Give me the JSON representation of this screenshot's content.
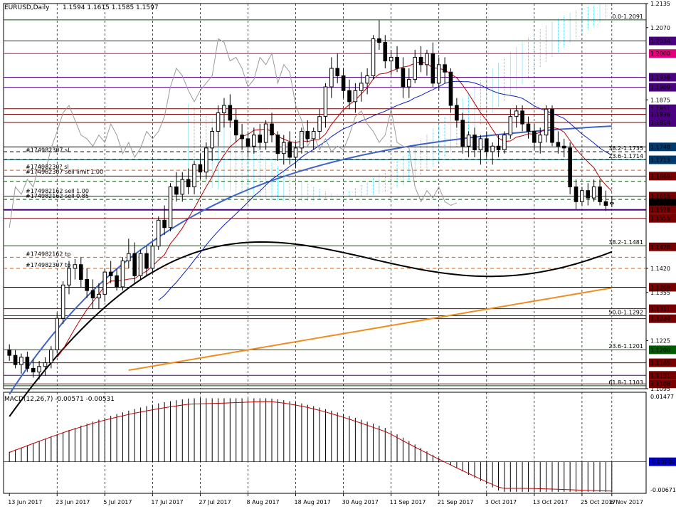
{
  "header": {
    "symbol": "EURUSD,Daily",
    "ohlc": "1.1594 1.1615 1.1585 1.1597"
  },
  "macd_header": {
    "label": "MACD(12,26,7) -0.00571 -0.00531"
  },
  "colors": {
    "background": "#ffffff",
    "candle": "#000000",
    "ma_fast": "#3f64c8",
    "ma_slow": "#000000",
    "ma_200": "#f08c1e",
    "kijun": "#0a1fbf",
    "tenkan": "#c00000",
    "kumo": "#25c8e6",
    "macd_signal": "#c00000",
    "level_purple": "#4b0082",
    "level_maroon": "#7a0000",
    "level_green": "#005c00",
    "level_orange": "#e05a00",
    "current_price": "#000000",
    "label_magenta": "#e0007a"
  },
  "chart_data": {
    "type": "candlestick",
    "title": "EURUSD,Daily",
    "ylim": [
      1.1095,
      1.2135
    ],
    "y_ticks": [
      "1.2135",
      "1.2070",
      "1.2005",
      "1.1940",
      "1.1875",
      "1.1810",
      "1.1745",
      "1.1680",
      "1.1615",
      "1.1550",
      "1.1485",
      "1.1420",
      "1.1355",
      "1.1290",
      "1.1225",
      "1.1160",
      "1.1095"
    ],
    "x_ticks": [
      "13 Jun 2017",
      "23 Jun 2017",
      "5 Jul 2017",
      "17 Jul 2017",
      "27 Jul 2017",
      "8 Aug 2017",
      "18 Aug 2017",
      "30 Aug 2017",
      "11 Sep 2017",
      "21 Sep 2017",
      "3 Oct 2017",
      "13 Oct 2017",
      "25 Oct 2017",
      "6 Nov 2017"
    ],
    "candles": [
      [
        1.12,
        1.1215,
        1.117,
        1.1185
      ],
      [
        1.1185,
        1.12,
        1.115,
        1.116
      ],
      [
        1.116,
        1.119,
        1.1135,
        1.118
      ],
      [
        1.118,
        1.1195,
        1.114,
        1.115
      ],
      [
        1.115,
        1.1175,
        1.1125,
        1.114
      ],
      [
        1.114,
        1.117,
        1.112,
        1.1155
      ],
      [
        1.1155,
        1.118,
        1.113,
        1.1165
      ],
      [
        1.1165,
        1.121,
        1.115,
        1.12
      ],
      [
        1.12,
        1.13,
        1.119,
        1.1285
      ],
      [
        1.1285,
        1.1385,
        1.127,
        1.1375
      ],
      [
        1.1375,
        1.144,
        1.135,
        1.142
      ],
      [
        1.142,
        1.1445,
        1.139,
        1.143
      ],
      [
        1.143,
        1.145,
        1.137,
        1.139
      ],
      [
        1.139,
        1.142,
        1.134,
        1.136
      ],
      [
        1.136,
        1.139,
        1.131,
        1.134
      ],
      [
        1.134,
        1.138,
        1.131,
        1.135
      ],
      [
        1.135,
        1.142,
        1.133,
        1.141
      ],
      [
        1.141,
        1.144,
        1.138,
        1.14
      ],
      [
        1.14,
        1.142,
        1.136,
        1.137
      ],
      [
        1.137,
        1.145,
        1.136,
        1.144
      ],
      [
        1.144,
        1.15,
        1.142,
        1.146
      ],
      [
        1.146,
        1.149,
        1.138,
        1.14
      ],
      [
        1.14,
        1.147,
        1.139,
        1.146
      ],
      [
        1.146,
        1.148,
        1.14,
        1.142
      ],
      [
        1.142,
        1.149,
        1.141,
        1.148
      ],
      [
        1.148,
        1.156,
        1.147,
        1.155
      ],
      [
        1.155,
        1.159,
        1.151,
        1.153
      ],
      [
        1.153,
        1.165,
        1.152,
        1.164
      ],
      [
        1.164,
        1.168,
        1.16,
        1.162
      ],
      [
        1.162,
        1.168,
        1.16,
        1.166
      ],
      [
        1.166,
        1.169,
        1.162,
        1.164
      ],
      [
        1.164,
        1.171,
        1.162,
        1.17
      ],
      [
        1.17,
        1.173,
        1.166,
        1.168
      ],
      [
        1.168,
        1.176,
        1.166,
        1.1745
      ],
      [
        1.1745,
        1.18,
        1.171,
        1.179
      ],
      [
        1.179,
        1.186,
        1.175,
        1.184
      ],
      [
        1.184,
        1.188,
        1.18,
        1.186
      ],
      [
        1.186,
        1.189,
        1.18,
        1.182
      ],
      [
        1.182,
        1.185,
        1.176,
        1.178
      ],
      [
        1.178,
        1.181,
        1.174,
        1.177
      ],
      [
        1.177,
        1.179,
        1.172,
        1.175
      ],
      [
        1.175,
        1.18,
        1.173,
        1.178
      ],
      [
        1.178,
        1.181,
        1.174,
        1.176
      ],
      [
        1.176,
        1.182,
        1.174,
        1.181
      ],
      [
        1.181,
        1.184,
        1.176,
        1.178
      ],
      [
        1.178,
        1.179,
        1.171,
        1.173
      ],
      [
        1.173,
        1.178,
        1.17,
        1.176
      ],
      [
        1.176,
        1.179,
        1.17,
        1.172
      ],
      [
        1.172,
        1.176,
        1.169,
        1.1745
      ],
      [
        1.1745,
        1.18,
        1.173,
        1.179
      ],
      [
        1.179,
        1.182,
        1.176,
        1.177
      ],
      [
        1.177,
        1.18,
        1.174,
        1.179
      ],
      [
        1.179,
        1.185,
        1.177,
        1.183
      ],
      [
        1.183,
        1.192,
        1.18,
        1.191
      ],
      [
        1.191,
        1.199,
        1.188,
        1.196
      ],
      [
        1.196,
        1.2,
        1.192,
        1.194
      ],
      [
        1.194,
        1.196,
        1.188,
        1.19
      ],
      [
        1.19,
        1.193,
        1.185,
        1.187
      ],
      [
        1.187,
        1.192,
        1.184,
        1.19
      ],
      [
        1.19,
        1.195,
        1.187,
        1.192
      ],
      [
        1.192,
        1.196,
        1.189,
        1.194
      ],
      [
        1.194,
        1.205,
        1.193,
        1.204
      ],
      [
        1.204,
        1.209,
        1.201,
        1.203
      ],
      [
        1.203,
        1.205,
        1.196,
        1.198
      ],
      [
        1.198,
        1.201,
        1.194,
        1.199
      ],
      [
        1.199,
        1.202,
        1.195,
        1.196
      ],
      [
        1.196,
        1.199,
        1.188,
        1.191
      ],
      [
        1.191,
        1.196,
        1.188,
        1.193
      ],
      [
        1.193,
        1.201,
        1.192,
        1.199
      ],
      [
        1.199,
        1.202,
        1.195,
        1.197
      ],
      [
        1.197,
        1.201,
        1.194,
        1.2
      ],
      [
        1.2,
        1.203,
        1.191,
        1.192
      ],
      [
        1.192,
        1.199,
        1.19,
        1.197
      ],
      [
        1.197,
        1.199,
        1.192,
        1.195
      ],
      [
        1.195,
        1.196,
        1.184,
        1.186
      ],
      [
        1.186,
        1.188,
        1.18,
        1.182
      ],
      [
        1.182,
        1.184,
        1.173,
        1.175
      ],
      [
        1.175,
        1.179,
        1.172,
        1.178
      ],
      [
        1.178,
        1.18,
        1.172,
        1.174
      ],
      [
        1.174,
        1.178,
        1.17,
        1.177
      ],
      [
        1.177,
        1.179,
        1.172,
        1.1735
      ],
      [
        1.1735,
        1.176,
        1.17,
        1.175
      ],
      [
        1.175,
        1.178,
        1.172,
        1.174
      ],
      [
        1.174,
        1.179,
        1.173,
        1.178
      ],
      [
        1.178,
        1.185,
        1.177,
        1.183
      ],
      [
        1.183,
        1.186,
        1.18,
        1.1845
      ],
      [
        1.1845,
        1.186,
        1.179,
        1.181
      ],
      [
        1.181,
        1.183,
        1.177,
        1.179
      ],
      [
        1.179,
        1.181,
        1.174,
        1.176
      ],
      [
        1.176,
        1.18,
        1.173,
        1.178
      ],
      [
        1.178,
        1.186,
        1.176,
        1.185
      ],
      [
        1.185,
        1.186,
        1.175,
        1.176
      ],
      [
        1.176,
        1.179,
        1.173,
        1.175
      ],
      [
        1.175,
        1.177,
        1.172,
        1.1745
      ],
      [
        1.1745,
        1.176,
        1.162,
        1.164
      ],
      [
        1.164,
        1.166,
        1.158,
        1.16
      ],
      [
        1.16,
        1.164,
        1.159,
        1.163
      ],
      [
        1.163,
        1.165,
        1.159,
        1.161
      ],
      [
        1.161,
        1.166,
        1.16,
        1.164
      ],
      [
        1.164,
        1.166,
        1.159,
        1.16
      ],
      [
        1.16,
        1.163,
        1.1575,
        1.159
      ],
      [
        1.1594,
        1.1615,
        1.1585,
        1.1597
      ]
    ],
    "macd": {
      "label": "MACD(12,26,7) -0.00571 -0.00531",
      "ylim": [
        -0.00671,
        0.01477
      ],
      "y_ticks": [
        "0.01477",
        "-0.00000",
        "-0.00671"
      ]
    },
    "price_labels": [
      {
        "value": 1.2135,
        "text": "1.2135"
      },
      {
        "value": 1.207,
        "text": "1.2070"
      },
      {
        "value": 1.2034,
        "text": "1.2034"
      },
      {
        "value": 1.2,
        "text": "1.2000"
      },
      {
        "value": 1.1936,
        "text": "1.1936"
      },
      {
        "value": 1.1909,
        "text": "1.1909"
      },
      {
        "value": 1.1875,
        "text": "1.1875"
      },
      {
        "value": 1.1851,
        "text": "1.1851"
      },
      {
        "value": 1.1836,
        "text": "1.1836"
      },
      {
        "value": 1.1814,
        "text": "1.1814"
      },
      {
        "value": 1.1748,
        "text": "1.1748"
      },
      {
        "value": 1.1713,
        "text": "1.1713"
      },
      {
        "value": 1.1669,
        "text": "1.1669"
      },
      {
        "value": 1.1615,
        "text": "1.1615"
      },
      {
        "value": 1.1597,
        "text": "1.1597"
      },
      {
        "value": 1.1578,
        "text": "1.1578"
      },
      {
        "value": 1.1555,
        "text": "1.1555"
      },
      {
        "value": 1.1478,
        "text": "1.1478"
      },
      {
        "value": 1.142,
        "text": "1.1420"
      },
      {
        "value": 1.1369,
        "text": "1.1369"
      },
      {
        "value": 1.1355,
        "text": "1.1355"
      },
      {
        "value": 1.1311,
        "text": "1.1311"
      },
      {
        "value": 1.1284,
        "text": "1.1284"
      },
      {
        "value": 1.1225,
        "text": "1.1225"
      },
      {
        "value": 1.12,
        "text": "1.1200"
      },
      {
        "value": 1.1165,
        "text": "1.1165"
      },
      {
        "value": 1.1131,
        "text": "1.1131"
      },
      {
        "value": 1.1108,
        "text": "1.1108"
      },
      {
        "value": 1.1095,
        "text": "1.1095"
      }
    ],
    "fib_labels": [
      {
        "value": 1.2091,
        "text": "0.0-1.2091"
      },
      {
        "value": 1.1735,
        "text": "38.2-1.1735"
      },
      {
        "value": 1.1714,
        "text": "23.6-1.1714"
      },
      {
        "value": 1.1481,
        "text": "38.2-1.1481"
      },
      {
        "value": 1.1292,
        "text": "50.0-1.1292"
      },
      {
        "value": 1.1201,
        "text": "23.6-1.1201"
      },
      {
        "value": 1.1103,
        "text": "61.8-1.1103"
      }
    ],
    "order_labels": [
      {
        "value": 1.173,
        "text": "#174982307 sl"
      },
      {
        "value": 1.1685,
        "text": "#17498230? sl"
      },
      {
        "value": 1.1672,
        "text": "#174982307 sell limit 1.00"
      },
      {
        "value": 1.162,
        "text": "#174982162 sell 1.00"
      },
      {
        "value": 1.1606,
        "text": "#174982162 sell 0.85"
      },
      {
        "value": 1.145,
        "text": "#174982162 tp"
      },
      {
        "value": 1.142,
        "text": "#174982307 tp"
      }
    ],
    "levels": [
      {
        "value": 1.2091,
        "color": "#005c00",
        "style": "solid"
      },
      {
        "value": 1.2034,
        "color": "#4b0082",
        "style": "solid"
      },
      {
        "value": 1.2,
        "color": "#e0007a",
        "style": "solid"
      },
      {
        "value": 1.1936,
        "color": "#4b0082",
        "style": "solid"
      },
      {
        "value": 1.1909,
        "color": "#4b0082",
        "style": "solid"
      },
      {
        "value": 1.1851,
        "color": "#7a0000",
        "style": "solid"
      },
      {
        "value": 1.1836,
        "color": "#7a0000",
        "style": "solid"
      },
      {
        "value": 1.1814,
        "color": "#7a0000",
        "style": "solid"
      },
      {
        "value": 1.1748,
        "color": "#000000",
        "style": "solid"
      },
      {
        "value": 1.1735,
        "color": "#000000",
        "style": "dash"
      },
      {
        "value": 1.1714,
        "color": "#005c00",
        "style": "dash"
      },
      {
        "value": 1.1713,
        "color": "#004040",
        "style": "solid"
      },
      {
        "value": 1.1685,
        "color": "#e05a00",
        "style": "dash"
      },
      {
        "value": 1.1669,
        "color": "#7a0000",
        "style": "solid"
      },
      {
        "value": 1.1655,
        "color": "#005c00",
        "style": "dash"
      },
      {
        "value": 1.1615,
        "color": "#4b0082",
        "style": "solid"
      },
      {
        "value": 1.1606,
        "color": "#005c00",
        "style": "dash"
      },
      {
        "value": 1.1578,
        "color": "#4b0082",
        "style": "thick"
      },
      {
        "value": 1.1555,
        "color": "#7a0000",
        "style": "solid"
      },
      {
        "value": 1.1481,
        "color": "#005c00",
        "style": "solid"
      },
      {
        "value": 1.145,
        "color": "#e05a00",
        "style": "dash"
      },
      {
        "value": 1.142,
        "color": "#e05a00",
        "style": "dash"
      },
      {
        "value": 1.1369,
        "color": "#000000",
        "style": "solid"
      },
      {
        "value": 1.1311,
        "color": "#7a0000",
        "style": "solid"
      },
      {
        "value": 1.1292,
        "color": "#005c00",
        "style": "solid"
      },
      {
        "value": 1.1284,
        "color": "#7a0000",
        "style": "solid"
      },
      {
        "value": 1.12,
        "color": "#005c00",
        "style": "solid"
      },
      {
        "value": 1.1165,
        "color": "#7a0000",
        "style": "solid"
      },
      {
        "value": 1.1131,
        "color": "#4b0082",
        "style": "solid"
      },
      {
        "value": 1.1108,
        "color": "#7a0000",
        "style": "solid"
      },
      {
        "value": 1.1103,
        "color": "#005c00",
        "style": "solid"
      }
    ]
  }
}
